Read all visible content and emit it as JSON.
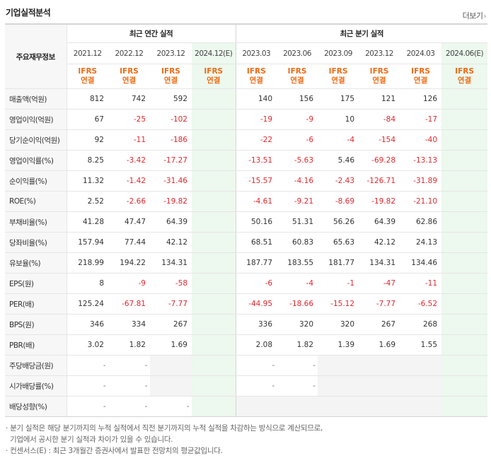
{
  "title": "기업실적분석",
  "more_label": "더보기",
  "header": {
    "corner": "주요재무정보",
    "annual_group": "최근 연간 실적",
    "quarter_group": "최근 분기 실적",
    "annual_periods": [
      "2021.12",
      "2022.12",
      "2023.12",
      "2024.12(E)"
    ],
    "quarter_periods": [
      "2023.03",
      "2023.06",
      "2023.09",
      "2023.12",
      "2024.03",
      "2024.06(E)"
    ],
    "standard_top": "IFRS",
    "standard_bottom": "연결"
  },
  "rows": [
    {
      "label": "매출액(억원)",
      "annual": [
        "812",
        "742",
        "592",
        ""
      ],
      "quarter": [
        "140",
        "156",
        "175",
        "121",
        "126",
        ""
      ]
    },
    {
      "label": "영업이익(억원)",
      "annual": [
        "67",
        "-25",
        "-102",
        ""
      ],
      "quarter": [
        "-19",
        "-9",
        "10",
        "-84",
        "-17",
        ""
      ]
    },
    {
      "label": "당기순이익(억원)",
      "annual": [
        "92",
        "-11",
        "-186",
        ""
      ],
      "quarter": [
        "-22",
        "-6",
        "-4",
        "-154",
        "-40",
        ""
      ]
    },
    {
      "label": "영업이익률(%)",
      "annual": [
        "8.25",
        "-3.42",
        "-17.27",
        ""
      ],
      "quarter": [
        "-13.51",
        "-5.63",
        "5.46",
        "-69.28",
        "-13.13",
        ""
      ]
    },
    {
      "label": "순이익률(%)",
      "annual": [
        "11.32",
        "-1.42",
        "-31.46",
        ""
      ],
      "quarter": [
        "-15.57",
        "-4.16",
        "-2.43",
        "-126.71",
        "-31.89",
        ""
      ]
    },
    {
      "label": "ROE(%)",
      "annual": [
        "2.52",
        "-2.66",
        "-19.82",
        ""
      ],
      "quarter": [
        "-4.61",
        "-9.21",
        "-8.69",
        "-19.82",
        "-21.10",
        ""
      ]
    },
    {
      "label": "부채비율(%)",
      "annual": [
        "41.28",
        "47.47",
        "64.39",
        ""
      ],
      "quarter": [
        "50.16",
        "51.31",
        "56.26",
        "64.39",
        "62.86",
        ""
      ]
    },
    {
      "label": "당좌비율(%)",
      "annual": [
        "157.94",
        "77.44",
        "42.12",
        ""
      ],
      "quarter": [
        "68.51",
        "60.83",
        "65.63",
        "42.12",
        "24.13",
        ""
      ]
    },
    {
      "label": "유보율(%)",
      "annual": [
        "218.99",
        "194.22",
        "134.31",
        ""
      ],
      "quarter": [
        "187.77",
        "183.55",
        "181.77",
        "134.31",
        "134.46",
        ""
      ]
    },
    {
      "label": "EPS(원)",
      "annual": [
        "8",
        "-9",
        "-58",
        ""
      ],
      "quarter": [
        "-6",
        "-4",
        "-1",
        "-47",
        "-11",
        ""
      ]
    },
    {
      "label": "PER(배)",
      "annual": [
        "125.24",
        "-67.81",
        "-7.77",
        ""
      ],
      "quarter": [
        "-44.95",
        "-18.66",
        "-15.12",
        "-7.77",
        "-6.52",
        ""
      ]
    },
    {
      "label": "BPS(원)",
      "annual": [
        "346",
        "334",
        "267",
        ""
      ],
      "quarter": [
        "336",
        "320",
        "320",
        "267",
        "268",
        ""
      ]
    },
    {
      "label": "PBR(배)",
      "annual": [
        "3.02",
        "1.82",
        "1.69",
        ""
      ],
      "quarter": [
        "2.08",
        "1.82",
        "1.39",
        "1.69",
        "1.55",
        ""
      ]
    },
    {
      "label": "주당배당금(원)",
      "annual": [
        "-",
        "-",
        null,
        null
      ],
      "quarter": [
        "-",
        "-",
        null,
        null,
        null,
        null
      ]
    },
    {
      "label": "시가배당률(%)",
      "annual": [
        "-",
        "-",
        null,
        null
      ],
      "quarter": [
        "-",
        "-",
        null,
        null,
        null,
        null
      ]
    },
    {
      "label": "배당성향(%)",
      "annual": [
        "-",
        "-",
        "-",
        null
      ],
      "quarter": [
        null,
        null,
        null,
        null,
        null,
        null
      ]
    }
  ],
  "notes": [
    "· 분기 실적은 해당 분기까지의 누적 실적에서 직전 분기까지의 누적 실적을 차감하는 방식으로 계산되므로,",
    "기업에서 공시한 분기 실적과 차이가 있을 수 있습니다.",
    "· 컨센서스(E) : 최근 3개월간 증권사에서 발표한 전망치의 평균값입니다."
  ],
  "colors": {
    "standard": "#f06a13",
    "negative": "#e0282e",
    "estimate_bg": "#edf8ee",
    "empty_bg": "#f4f4f4"
  }
}
